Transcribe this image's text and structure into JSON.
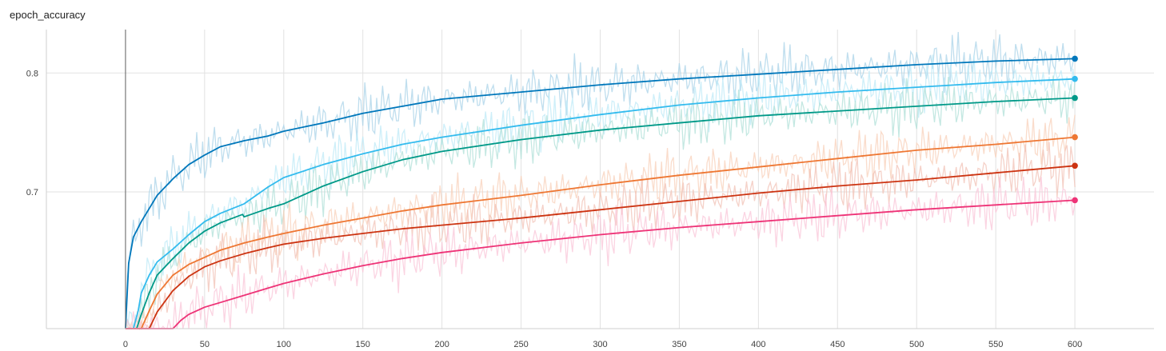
{
  "chart_data": {
    "type": "line",
    "title": "epoch_accuracy",
    "xlabel": "",
    "ylabel": "",
    "xlim": [
      -50,
      650
    ],
    "ylim": [
      0.585,
      0.8365
    ],
    "xticks": [
      0,
      50,
      100,
      150,
      200,
      250,
      300,
      350,
      400,
      450,
      500,
      550,
      600
    ],
    "yticks": [
      0.7,
      0.8
    ],
    "ytick_labels": [
      "0.7",
      "0.8"
    ],
    "grid": true,
    "legend": "none",
    "series": [
      {
        "color": "#0077bb",
        "raw_color": "#a9d3e8",
        "x": [
          0,
          2,
          5,
          10,
          15,
          20,
          30,
          40,
          50,
          60,
          75,
          90,
          100,
          125,
          150,
          175,
          200,
          250,
          300,
          350,
          400,
          450,
          500,
          550,
          600
        ],
        "y": [
          0.585,
          0.64,
          0.662,
          0.675,
          0.686,
          0.697,
          0.711,
          0.723,
          0.731,
          0.738,
          0.743,
          0.747,
          0.751,
          0.758,
          0.766,
          0.772,
          0.778,
          0.784,
          0.79,
          0.795,
          0.799,
          0.803,
          0.807,
          0.81,
          0.812
        ]
      },
      {
        "color": "#33bbee",
        "raw_color": "#bde9f7",
        "x": [
          0,
          5,
          8,
          10,
          15,
          20,
          30,
          40,
          50,
          60,
          75,
          90,
          100,
          125,
          150,
          175,
          200,
          250,
          300,
          350,
          400,
          450,
          500,
          550,
          600
        ],
        "y": [
          0.585,
          0.585,
          0.6,
          0.615,
          0.63,
          0.641,
          0.652,
          0.664,
          0.675,
          0.682,
          0.69,
          0.704,
          0.712,
          0.723,
          0.732,
          0.74,
          0.746,
          0.756,
          0.765,
          0.773,
          0.779,
          0.784,
          0.788,
          0.792,
          0.795
        ]
      },
      {
        "color": "#009988",
        "raw_color": "#b0e0d8",
        "x": [
          0,
          7,
          10,
          15,
          20,
          30,
          40,
          50,
          60,
          74,
          75,
          90,
          100,
          125,
          150,
          175,
          200,
          250,
          300,
          350,
          400,
          450,
          500,
          550,
          600
        ],
        "y": [
          0.585,
          0.585,
          0.597,
          0.615,
          0.63,
          0.644,
          0.657,
          0.667,
          0.674,
          0.681,
          0.679,
          0.686,
          0.69,
          0.705,
          0.717,
          0.727,
          0.734,
          0.744,
          0.752,
          0.758,
          0.764,
          0.768,
          0.772,
          0.776,
          0.779
        ]
      },
      {
        "color": "#ee7733",
        "raw_color": "#f8d0ba",
        "x": [
          0,
          10,
          15,
          20,
          30,
          40,
          50,
          60,
          75,
          90,
          100,
          125,
          150,
          175,
          200,
          250,
          300,
          350,
          400,
          450,
          500,
          550,
          600
        ],
        "y": [
          0.585,
          0.585,
          0.6,
          0.614,
          0.63,
          0.639,
          0.645,
          0.651,
          0.657,
          0.662,
          0.665,
          0.672,
          0.678,
          0.684,
          0.689,
          0.697,
          0.706,
          0.714,
          0.721,
          0.728,
          0.735,
          0.74,
          0.746
        ]
      },
      {
        "color": "#cc3311",
        "raw_color": "#f2c2b6",
        "x": [
          0,
          15,
          20,
          30,
          40,
          50,
          60,
          75,
          90,
          100,
          125,
          150,
          175,
          200,
          250,
          300,
          350,
          400,
          450,
          500,
          550,
          600
        ],
        "y": [
          0.585,
          0.585,
          0.599,
          0.617,
          0.629,
          0.637,
          0.642,
          0.648,
          0.653,
          0.656,
          0.661,
          0.665,
          0.669,
          0.672,
          0.678,
          0.685,
          0.692,
          0.699,
          0.705,
          0.71,
          0.716,
          0.722
        ]
      },
      {
        "color": "#ee3377",
        "raw_color": "#f9c5d8",
        "x": [
          0,
          30,
          35,
          40,
          50,
          60,
          75,
          90,
          100,
          125,
          150,
          175,
          200,
          250,
          300,
          350,
          400,
          450,
          500,
          550,
          600
        ],
        "y": [
          0.585,
          0.585,
          0.592,
          0.597,
          0.603,
          0.607,
          0.613,
          0.619,
          0.623,
          0.631,
          0.638,
          0.644,
          0.649,
          0.657,
          0.664,
          0.67,
          0.675,
          0.68,
          0.685,
          0.689,
          0.693
        ]
      }
    ]
  }
}
